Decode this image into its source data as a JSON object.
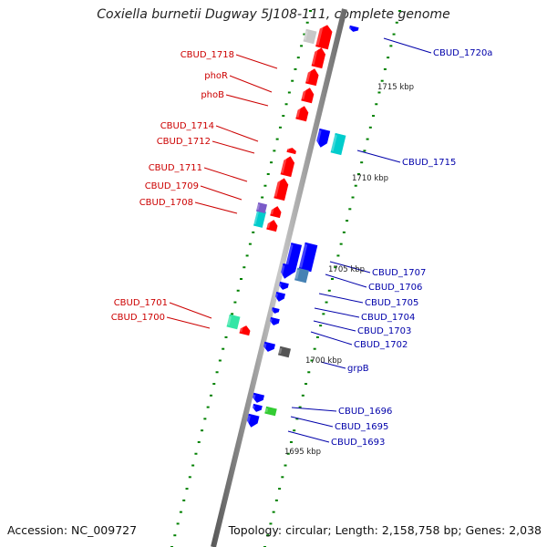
{
  "title": "Coxiella burnetii Dugway 5J108-111, complete genome",
  "accession": "Accession: NC_009727",
  "topology": "Topology: circular; Length: 2,158,758 bp; Genes: 2,038",
  "colors": {
    "forward_gene": "#ff0000",
    "reverse_gene": "#0000ff",
    "cyan_feature": "#00cccc",
    "teal_feature": "#4682b4",
    "backbone": "#8c8c8c",
    "tick_green": "#008000",
    "label_red": "#cc0000",
    "label_blue": "#0000aa"
  },
  "left_labels": [
    {
      "id": "cbud-1718",
      "text": "CBUD_1718"
    },
    {
      "id": "phor",
      "text": "phoR"
    },
    {
      "id": "phob",
      "text": "phoB"
    },
    {
      "id": "cbud-1714",
      "text": "CBUD_1714"
    },
    {
      "id": "cbud-1712",
      "text": "CBUD_1712"
    },
    {
      "id": "cbud-1711",
      "text": "CBUD_1711"
    },
    {
      "id": "cbud-1709",
      "text": "CBUD_1709"
    },
    {
      "id": "cbud-1708",
      "text": "CBUD_1708"
    },
    {
      "id": "cbud-1701",
      "text": "CBUD_1701"
    },
    {
      "id": "cbud-1700",
      "text": "CBUD_1700"
    }
  ],
  "right_labels": [
    {
      "id": "cbud-1720a",
      "text": "CBUD_1720a"
    },
    {
      "id": "cbud-1715",
      "text": "CBUD_1715"
    },
    {
      "id": "cbud-1707",
      "text": "CBUD_1707"
    },
    {
      "id": "cbud-1706",
      "text": "CBUD_1706"
    },
    {
      "id": "cbud-1705",
      "text": "CBUD_1705"
    },
    {
      "id": "cbud-1704",
      "text": "CBUD_1704"
    },
    {
      "id": "cbud-1703",
      "text": "CBUD_1703"
    },
    {
      "id": "cbud-1702",
      "text": "CBUD_1702"
    },
    {
      "id": "grpb",
      "text": "grpB"
    },
    {
      "id": "cbud-1696",
      "text": "CBUD_1696"
    },
    {
      "id": "cbud-1695",
      "text": "CBUD_1695"
    },
    {
      "id": "cbud-1693",
      "text": "CBUD_1693"
    }
  ],
  "scale_labels": [
    {
      "id": "kbp-1715",
      "text": "1715 kbp"
    },
    {
      "id": "kbp-1710",
      "text": "1710 kbp"
    },
    {
      "id": "kbp-1705",
      "text": "1705 kbp"
    },
    {
      "id": "kbp-1700",
      "text": "1700 kbp"
    },
    {
      "id": "kbp-1695",
      "text": "1695 kbp"
    }
  ]
}
